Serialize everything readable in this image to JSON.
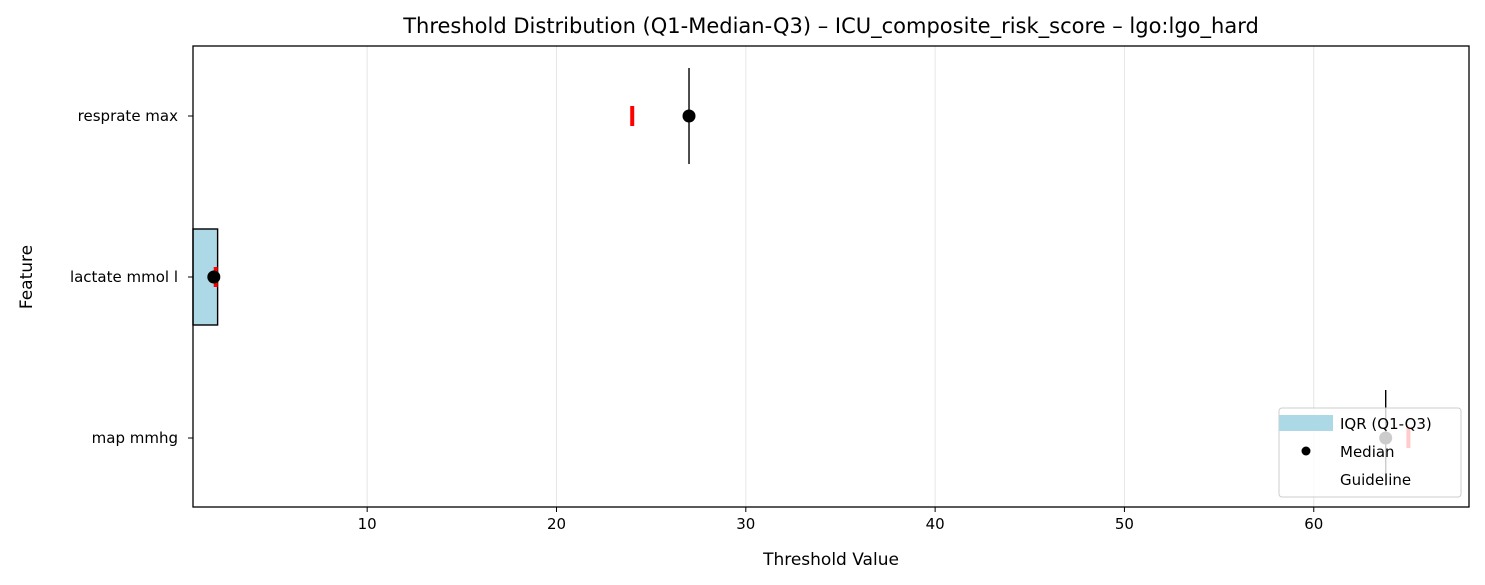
{
  "chart_data": {
    "type": "box",
    "title": "Threshold Distribution (Q1-Median-Q3) – ICU_composite_risk_score – lgo:lgo_hard",
    "xlabel": "Threshold Value",
    "ylabel": "Feature",
    "xlim": [
      0.8,
      68.2
    ],
    "xticks": [
      10,
      20,
      30,
      40,
      50,
      60
    ],
    "grid": "x",
    "legend_position": "lower right",
    "categories": [
      "resprate max",
      "lactate mmol l",
      "map mmhg"
    ],
    "series": [
      {
        "name": "IQR (Q1-Q3)",
        "q1": [
          27.0,
          0.8,
          63.8
        ],
        "q3": [
          27.0,
          2.1,
          63.8
        ]
      },
      {
        "name": "Median",
        "values": [
          27.0,
          1.9,
          63.8
        ]
      },
      {
        "name": "Guideline",
        "values": [
          24.0,
          2.0,
          65.0
        ]
      }
    ],
    "colors": {
      "iqr": "#add8e6",
      "median": "#000000",
      "guideline": "#ff0000"
    }
  }
}
